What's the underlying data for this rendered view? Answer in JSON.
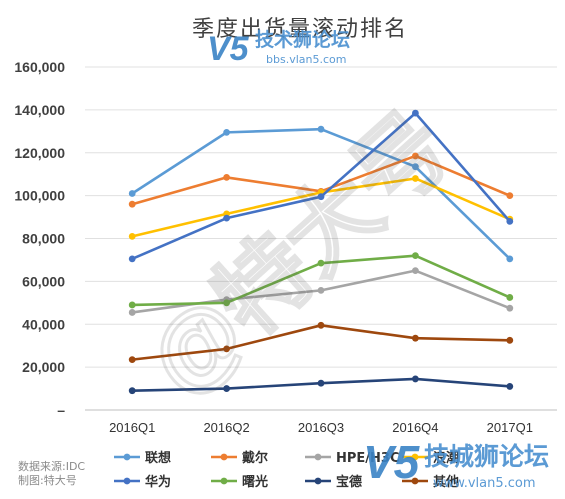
{
  "chart_data": {
    "type": "line",
    "title": "季度出货量滚动排名",
    "categories": [
      "2016Q1",
      "2016Q2",
      "2016Q3",
      "2016Q4",
      "2017Q1"
    ],
    "ylim": [
      0,
      160000
    ],
    "yticks": [
      "–",
      "20,000",
      "40,000",
      "60,000",
      "80,000",
      "100,000",
      "120,000",
      "140,000",
      "160,000"
    ],
    "grid": true,
    "legend_position": "bottom",
    "series": [
      {
        "name": "联想",
        "color": "#5b9bd5",
        "values": [
          101000,
          129500,
          131000,
          113500,
          70500
        ]
      },
      {
        "name": "戴尔",
        "color": "#ed7d31",
        "values": [
          96000,
          108500,
          102000,
          118500,
          100000
        ]
      },
      {
        "name": "HPE/H3C",
        "color": "#a5a5a5",
        "values": [
          45500,
          51500,
          55800,
          65000,
          47500
        ]
      },
      {
        "name": "浪潮",
        "color": "#ffc000",
        "values": [
          81000,
          91500,
          101500,
          108000,
          89000
        ]
      },
      {
        "name": "华为",
        "color": "#4472c4",
        "values": [
          70500,
          89500,
          99500,
          138500,
          88000
        ]
      },
      {
        "name": "曙光",
        "color": "#70ad47",
        "values": [
          49000,
          50000,
          68500,
          72000,
          52500
        ]
      },
      {
        "name": "宝德",
        "color": "#264478",
        "values": [
          9000,
          10000,
          12500,
          14500,
          11000
        ]
      },
      {
        "name": "其他",
        "color": "#9e480e",
        "values": [
          23500,
          28500,
          39500,
          33500,
          32500
        ]
      }
    ]
  },
  "legend_rows": [
    [
      "联想",
      "戴尔",
      "HPE/H3C",
      "浪潮"
    ],
    [
      "华为",
      "曙光",
      "宝德",
      "其他"
    ]
  ],
  "source_note": {
    "line1": "数据来源:IDC",
    "line2": "制图:特大号"
  },
  "watermarks": {
    "top_logo": "V5",
    "top_text": "技术狮论坛",
    "top_url": "bbs.vlan5.com",
    "bottom_logo": "V5",
    "bottom_text": "技城狮论坛",
    "bottom_url": "www.vlan5.com",
    "diagonal": "@特大号"
  }
}
